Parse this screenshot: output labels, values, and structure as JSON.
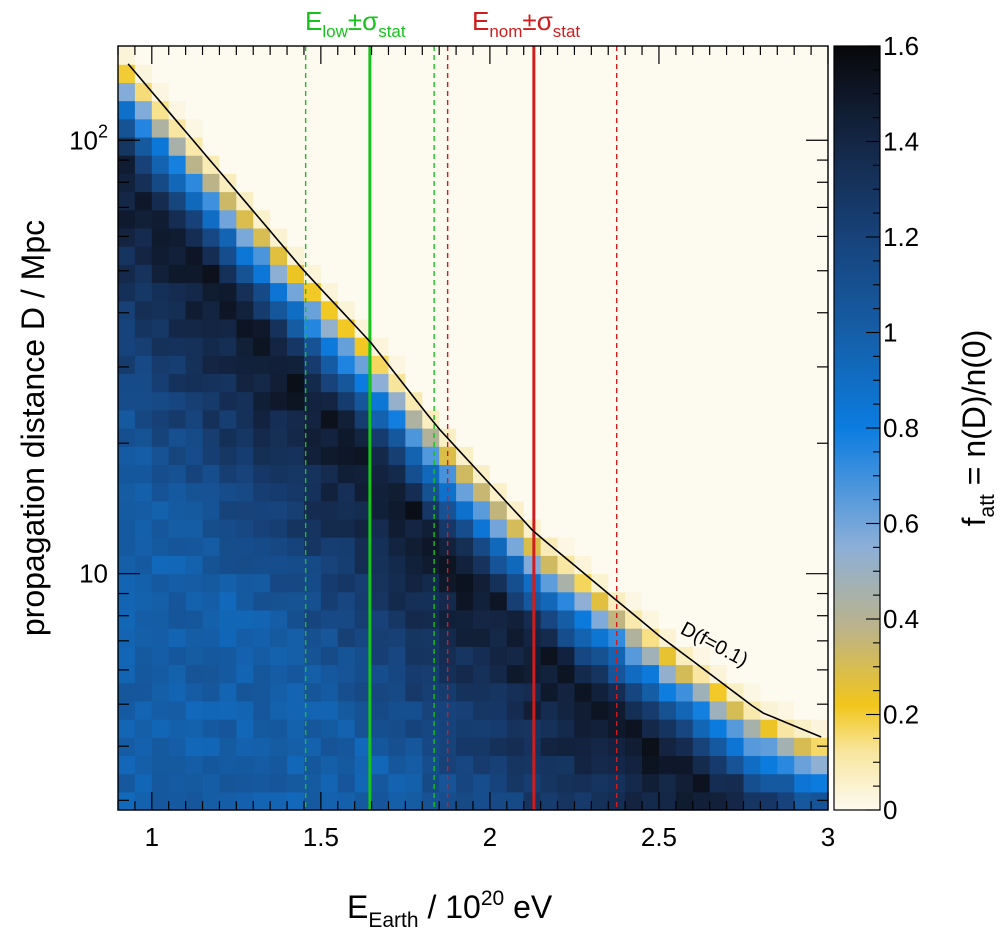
{
  "chart_data": {
    "type": "heatmap",
    "title": "",
    "xlabel": {
      "base": "E",
      "sub": "Earth",
      "mid": " / 10",
      "sup": "20",
      "unit": " eV"
    },
    "ylabel": "propagation distance D / Mpc",
    "zlabel": {
      "base": "f",
      "sub": "att",
      "rest": " = n(D)/n(0)"
    },
    "x_range": [
      0.9,
      3.0
    ],
    "y_range": [
      2.85,
      165
    ],
    "y_scale": "log",
    "z_range": [
      0,
      1.6
    ],
    "x_ticks": [
      1,
      1.5,
      2,
      2.5,
      3
    ],
    "x_tick_labels": [
      "1",
      "1.5",
      "2",
      "2.5",
      "3"
    ],
    "y_major_ticks": [
      10,
      100
    ],
    "y_tick_labels": [
      {
        "base": "10",
        "sup": ""
      },
      {
        "base": "10",
        "sup": "2"
      }
    ],
    "z_ticks": [
      0,
      0.2,
      0.4,
      0.6,
      0.8,
      1,
      1.2,
      1.4,
      1.6
    ],
    "z_tick_labels": [
      "0",
      "0.2",
      "0.4",
      "0.6",
      "0.8",
      "1",
      "1.2",
      "1.4",
      "1.6"
    ],
    "colormap": [
      {
        "v": 0.0,
        "color": "#fdfaf0"
      },
      {
        "v": 0.12,
        "color": "#f8e6a0"
      },
      {
        "v": 0.22,
        "color": "#f1c61b"
      },
      {
        "v": 0.38,
        "color": "#bcb389"
      },
      {
        "v": 0.55,
        "color": "#8cafd8"
      },
      {
        "v": 0.8,
        "color": "#0b7ce0"
      },
      {
        "v": 1.0,
        "color": "#155ea7"
      },
      {
        "v": 1.2,
        "color": "#17427a"
      },
      {
        "v": 1.4,
        "color": "#142645"
      },
      {
        "v": 1.6,
        "color": "#08080a"
      }
    ],
    "attenuation_model": {
      "edge_curve_x": [
        0.93,
        1.45,
        1.65,
        1.84,
        2.13,
        2.5,
        2.8,
        2.98
      ],
      "edge_curve_D": [
        150,
        50,
        34,
        22,
        12.5,
        7.2,
        4.8,
        4.2
      ],
      "peak_ratio": 0.55,
      "peak_value": 1.5
    },
    "annotation": {
      "text": "D(f=0.1)",
      "x": 2.56,
      "D": 7.3,
      "rotation_deg": 28
    },
    "vertical_lines": [
      {
        "x": 1.645,
        "style": "solid",
        "color": "#16c21b"
      },
      {
        "x": 1.455,
        "style": "dashed",
        "color": "#16c21b"
      },
      {
        "x": 1.835,
        "style": "dashed",
        "color": "#16c21b"
      },
      {
        "x": 2.13,
        "style": "solid",
        "color": "#cf1d1d"
      },
      {
        "x": 1.875,
        "style": "dashed",
        "color": "#cf1d1d"
      },
      {
        "x": 2.375,
        "style": "dashed",
        "color": "#cf1d1d"
      }
    ],
    "legend_labels": [
      {
        "base": "E",
        "sub": "low",
        "pm": "±σ",
        "sub2": "stat",
        "color": "#16c21b"
      },
      {
        "base": "E",
        "sub": "nom",
        "pm": "±σ",
        "sub2": "stat",
        "color": "#cf1d1d"
      }
    ]
  }
}
